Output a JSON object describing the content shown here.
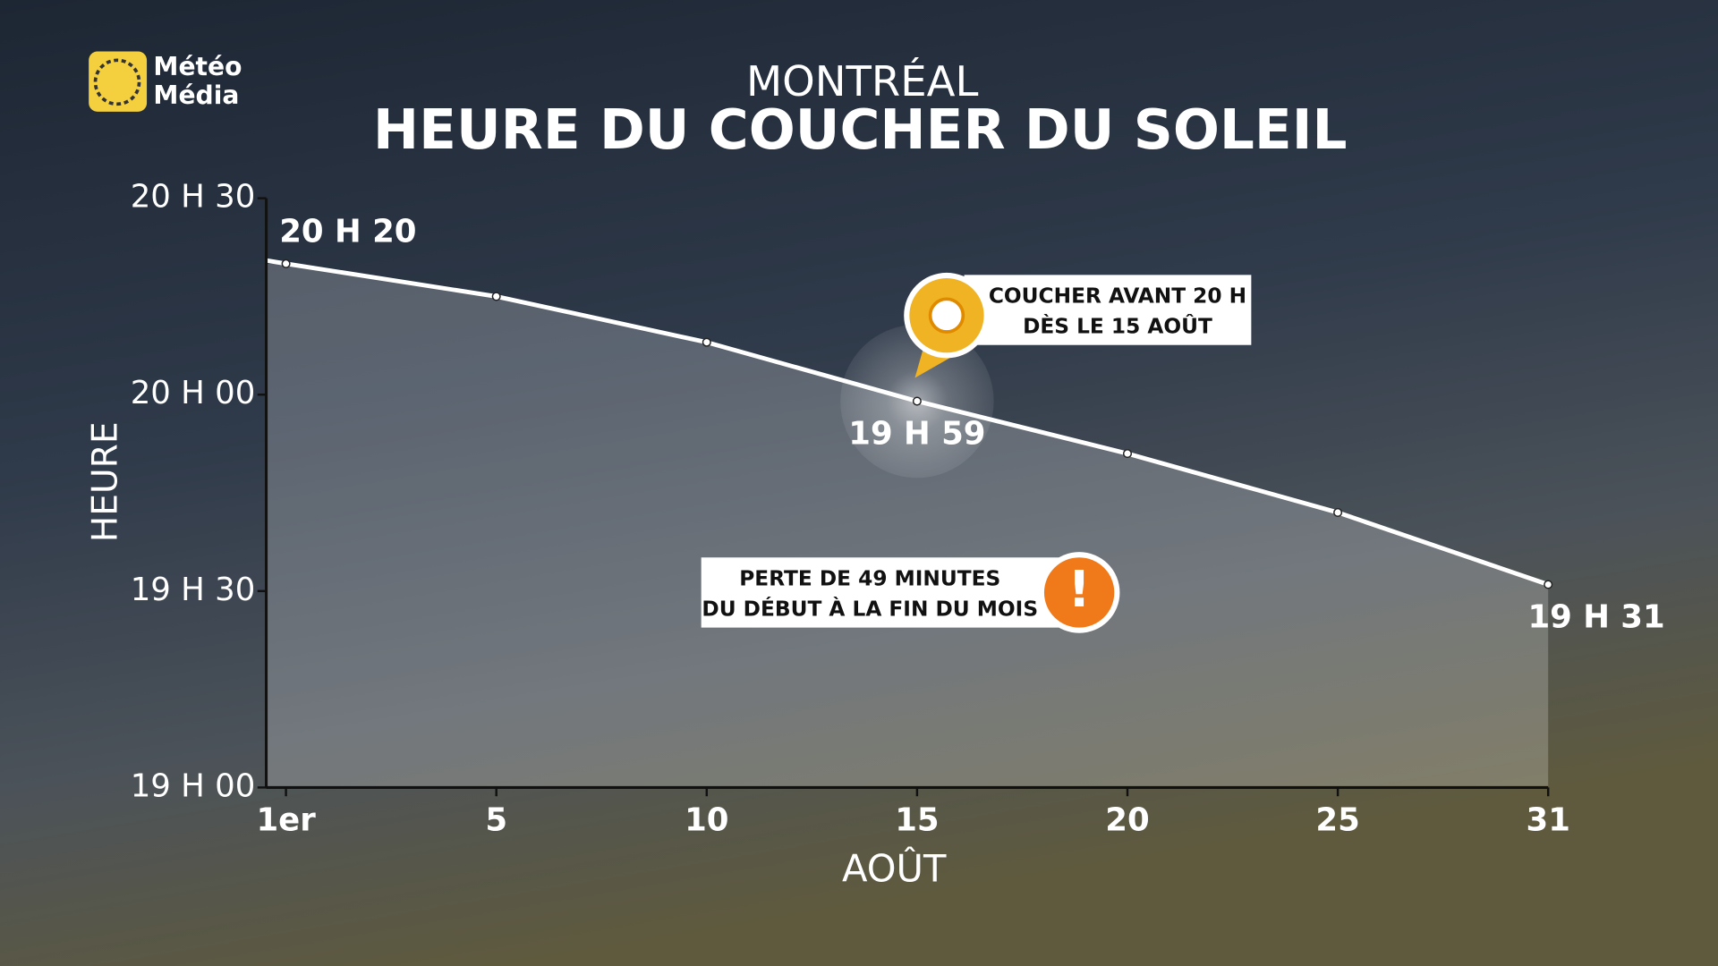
{
  "chart_data": {
    "type": "line",
    "logo": [
      "Météo",
      "Média"
    ],
    "subtitle": "MONTRÉAL",
    "title": "HEURE DU COUCHER DU SOLEIL",
    "y_label": "HEURE",
    "x_label": "AOÛT",
    "categories": [
      "1er",
      "5",
      "10",
      "15",
      "20",
      "25",
      "31"
    ],
    "values": [
      1220,
      1215,
      1208,
      1199,
      1191,
      1182,
      1171
    ],
    "value_labels": [
      "20 H 20",
      null,
      null,
      "19 H 59",
      null,
      null,
      "19 H 31"
    ],
    "color": "#ffffff",
    "ylim": [
      1140,
      1230
    ],
    "yticks": [
      {
        "value": 1140,
        "label": "19 H 00"
      },
      {
        "value": 1170,
        "label": "19 H 30"
      },
      {
        "value": 1200,
        "label": "20 H 00"
      },
      {
        "value": 1230,
        "label": "20 H 30"
      }
    ],
    "annotations": [
      {
        "lines": [
          "COUCHER AVANT 20 H",
          "DÈS LE 15 AOÛT"
        ]
      },
      {
        "lines": [
          "PERTE DE 49 MINUTES",
          "DU DÉBUT À LA FIN DU MOIS"
        ]
      }
    ]
  }
}
